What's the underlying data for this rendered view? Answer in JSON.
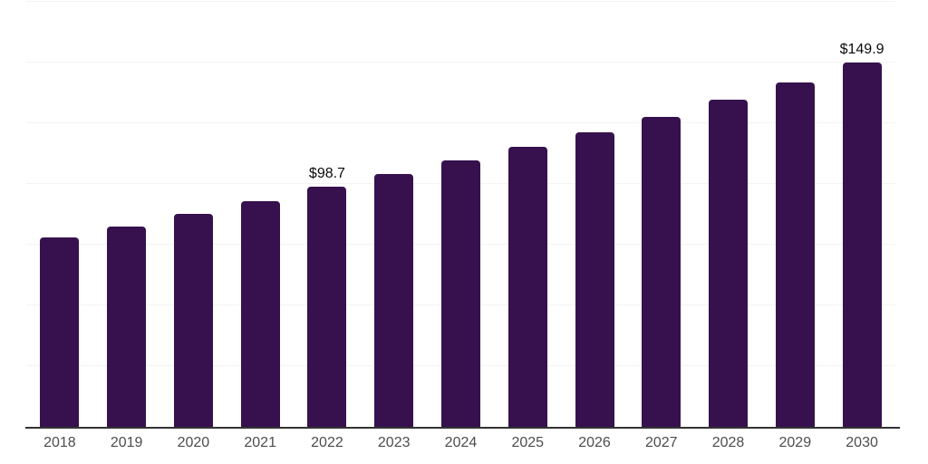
{
  "chart_data": {
    "type": "bar",
    "title": "",
    "xlabel": "",
    "ylabel": "",
    "categories": [
      "2018",
      "2019",
      "2020",
      "2021",
      "2022",
      "2023",
      "2024",
      "2025",
      "2026",
      "2027",
      "2028",
      "2029",
      "2030"
    ],
    "values": [
      77.9,
      82.4,
      87.6,
      93.0,
      98.7,
      104.2,
      109.7,
      115.3,
      121.4,
      127.8,
      134.6,
      141.9,
      149.9
    ],
    "labeled_points": [
      {
        "index": 4,
        "category": "2022",
        "text": "$98.7"
      },
      {
        "index": 12,
        "category": "2030",
        "text": "$149.9"
      }
    ],
    "ylim": [
      0,
      175
    ],
    "grid_step": 25,
    "grid": "horizontal",
    "legend": false,
    "y_axis_labels_visible": false
  },
  "colors": {
    "bar": "#36114E",
    "gridline": "#f3f3f3",
    "axis_line": "#333333",
    "tick_label": "#4d4d4d",
    "value_label": "#0a0a0a",
    "background": "#ffffff"
  }
}
